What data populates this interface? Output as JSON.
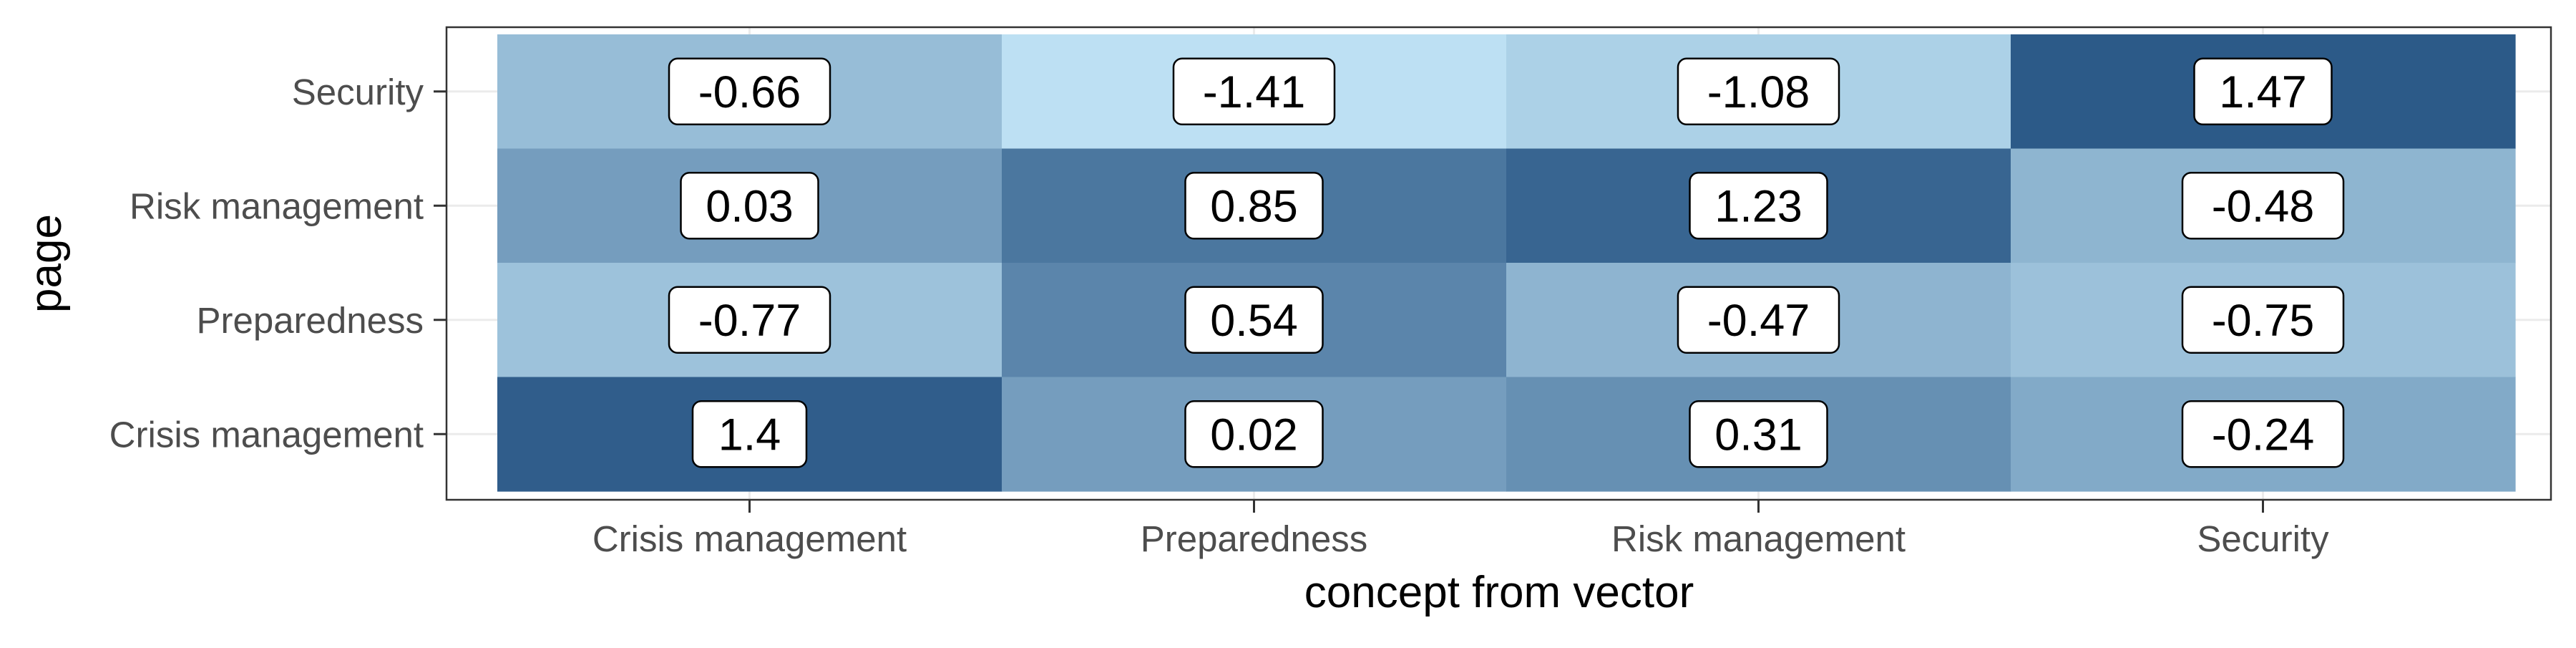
{
  "chart_data": {
    "type": "heatmap",
    "title": "",
    "xlabel": "concept from vector",
    "ylabel": "page",
    "x_categories": [
      "Crisis management",
      "Preparedness",
      "Risk management",
      "Security"
    ],
    "y_categories": [
      "Crisis management",
      "Preparedness",
      "Risk management",
      "Security"
    ],
    "cells": [
      {
        "x": "Crisis management",
        "y": "Security",
        "value": -0.66,
        "label": "-0.66"
      },
      {
        "x": "Preparedness",
        "y": "Security",
        "value": -1.41,
        "label": "-1.41"
      },
      {
        "x": "Risk management",
        "y": "Security",
        "value": -1.08,
        "label": "-1.08"
      },
      {
        "x": "Security",
        "y": "Security",
        "value": 1.47,
        "label": "1.47"
      },
      {
        "x": "Crisis management",
        "y": "Risk management",
        "value": 0.03,
        "label": "0.03"
      },
      {
        "x": "Preparedness",
        "y": "Risk management",
        "value": 0.85,
        "label": "0.85"
      },
      {
        "x": "Risk management",
        "y": "Risk management",
        "value": 1.23,
        "label": "1.23"
      },
      {
        "x": "Security",
        "y": "Risk management",
        "value": -0.48,
        "label": "-0.48"
      },
      {
        "x": "Crisis management",
        "y": "Preparedness",
        "value": -0.77,
        "label": "-0.77"
      },
      {
        "x": "Preparedness",
        "y": "Preparedness",
        "value": 0.54,
        "label": "0.54"
      },
      {
        "x": "Risk management",
        "y": "Preparedness",
        "value": -0.47,
        "label": "-0.47"
      },
      {
        "x": "Security",
        "y": "Preparedness",
        "value": -0.75,
        "label": "-0.75"
      },
      {
        "x": "Crisis management",
        "y": "Crisis management",
        "value": 1.4,
        "label": "1.4"
      },
      {
        "x": "Preparedness",
        "y": "Crisis management",
        "value": 0.02,
        "label": "0.02"
      },
      {
        "x": "Risk management",
        "y": "Crisis management",
        "value": 0.31,
        "label": "0.31"
      },
      {
        "x": "Security",
        "y": "Crisis management",
        "value": -0.24,
        "label": "-0.24"
      }
    ],
    "color_scale": {
      "low": "#bde0f3",
      "high": "#2c5a88"
    },
    "grid": true,
    "legend": "none"
  }
}
